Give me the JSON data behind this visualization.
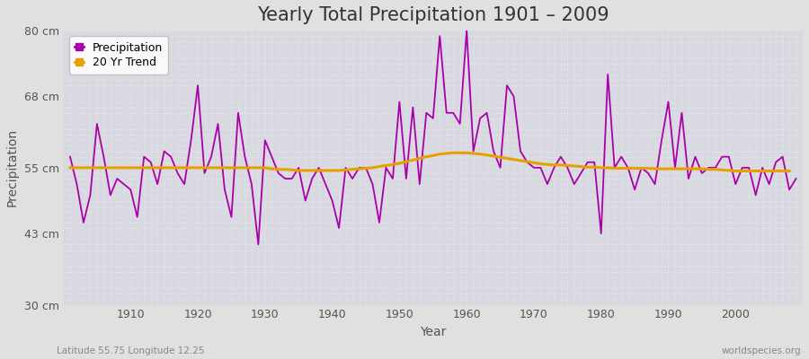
{
  "title": "Yearly Total Precipitation 1901 – 2009",
  "xlabel": "Year",
  "ylabel": "Precipitation",
  "lat_lon_label": "Latitude 55.75 Longitude 12.25",
  "watermark": "worldspecies.org",
  "years": [
    1901,
    1902,
    1903,
    1904,
    1905,
    1906,
    1907,
    1908,
    1909,
    1910,
    1911,
    1912,
    1913,
    1914,
    1915,
    1916,
    1917,
    1918,
    1919,
    1920,
    1921,
    1922,
    1923,
    1924,
    1925,
    1926,
    1927,
    1928,
    1929,
    1930,
    1931,
    1932,
    1933,
    1934,
    1935,
    1936,
    1937,
    1938,
    1939,
    1940,
    1941,
    1942,
    1943,
    1944,
    1945,
    1946,
    1947,
    1948,
    1949,
    1950,
    1951,
    1952,
    1953,
    1954,
    1955,
    1956,
    1957,
    1958,
    1959,
    1960,
    1961,
    1962,
    1963,
    1964,
    1965,
    1966,
    1967,
    1968,
    1969,
    1970,
    1971,
    1972,
    1973,
    1974,
    1975,
    1976,
    1977,
    1978,
    1979,
    1980,
    1981,
    1982,
    1983,
    1984,
    1985,
    1986,
    1987,
    1988,
    1989,
    1990,
    1991,
    1992,
    1993,
    1994,
    1995,
    1996,
    1997,
    1998,
    1999,
    2000,
    2001,
    2002,
    2003,
    2004,
    2005,
    2006,
    2007,
    2008,
    2009
  ],
  "precip": [
    57,
    52,
    45,
    50,
    63,
    57,
    50,
    53,
    52,
    51,
    46,
    57,
    56,
    52,
    58,
    57,
    54,
    52,
    60,
    70,
    54,
    57,
    63,
    51,
    46,
    65,
    57,
    52,
    41,
    60,
    57,
    54,
    53,
    53,
    55,
    49,
    53,
    55,
    52,
    49,
    44,
    55,
    53,
    55,
    55,
    52,
    45,
    55,
    53,
    67,
    53,
    66,
    52,
    65,
    64,
    79,
    65,
    65,
    63,
    80,
    58,
    64,
    65,
    58,
    55,
    70,
    68,
    58,
    56,
    55,
    55,
    52,
    55,
    57,
    55,
    52,
    54,
    56,
    56,
    43,
    72,
    55,
    57,
    55,
    51,
    55,
    54,
    52,
    60,
    67,
    55,
    65,
    53,
    57,
    54,
    55,
    55,
    57,
    57,
    52,
    55,
    55,
    50,
    55,
    52,
    56,
    57,
    51,
    53
  ],
  "trend": [
    55.0,
    55.0,
    55.0,
    55.0,
    55.0,
    55.0,
    55.0,
    55.0,
    55.0,
    55.0,
    55.0,
    55.0,
    55.0,
    55.0,
    55.0,
    55.0,
    55.0,
    55.0,
    55.0,
    55.0,
    55.0,
    55.0,
    55.0,
    55.0,
    55.0,
    55.0,
    55.0,
    55.0,
    55.0,
    55.0,
    54.8,
    54.7,
    54.7,
    54.6,
    54.5,
    54.5,
    54.5,
    54.5,
    54.5,
    54.5,
    54.5,
    54.6,
    54.7,
    54.8,
    54.9,
    55.0,
    55.2,
    55.4,
    55.6,
    55.8,
    56.1,
    56.4,
    56.7,
    57.0,
    57.2,
    57.5,
    57.6,
    57.7,
    57.7,
    57.7,
    57.6,
    57.5,
    57.3,
    57.1,
    56.9,
    56.7,
    56.5,
    56.3,
    56.1,
    55.9,
    55.7,
    55.6,
    55.5,
    55.5,
    55.4,
    55.3,
    55.2,
    55.1,
    55.1,
    55.0,
    55.0,
    54.9,
    54.9,
    54.9,
    54.9,
    54.9,
    54.9,
    54.8,
    54.8,
    54.8,
    54.8,
    54.8,
    54.8,
    54.8,
    54.8,
    54.7,
    54.7,
    54.6,
    54.5,
    54.4,
    54.4,
    54.4,
    54.4,
    54.4,
    54.4,
    54.4,
    54.4,
    54.4,
    null
  ],
  "precip_color": "#aa00aa",
  "trend_color": "#e8a000",
  "fig_bg_color": "#e0e0e0",
  "plot_bg_color": "#d8d8e0",
  "grid_color": "#ffffff",
  "ylim": [
    30,
    80
  ],
  "yticks": [
    30,
    43,
    55,
    68,
    80
  ],
  "ytick_labels": [
    "30 cm",
    "43 cm",
    "55 cm",
    "68 cm",
    "80 cm"
  ],
  "xticks": [
    1910,
    1920,
    1930,
    1940,
    1950,
    1960,
    1970,
    1980,
    1990,
    2000
  ],
  "xlim": [
    1900,
    2010
  ],
  "title_fontsize": 15,
  "axis_label_fontsize": 10,
  "tick_fontsize": 9,
  "legend_fontsize": 9
}
